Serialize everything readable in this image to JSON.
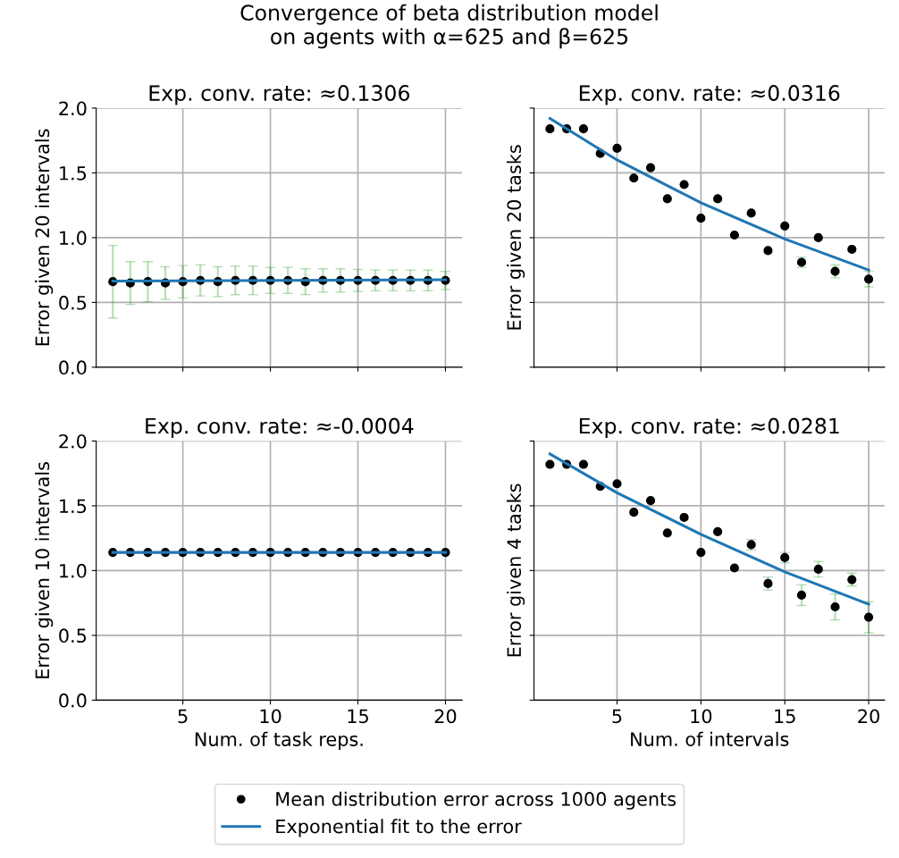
{
  "chart_data": [
    {
      "type": "line",
      "title": "Exp. conv. rate: ≈0.1306",
      "ylabel": "Error given 20 intervals",
      "annotations": [
        "Convergence of beta distribution model\non agents with α=625 and β=625"
      ],
      "x": [
        1,
        2,
        3,
        4,
        5,
        6,
        7,
        8,
        9,
        10,
        11,
        12,
        13,
        14,
        15,
        16,
        17,
        18,
        19,
        20
      ],
      "xlim": [
        0.05,
        20.95
      ],
      "xticks": [
        5,
        10,
        15,
        20
      ],
      "ylim": [
        0,
        2
      ],
      "yticks": [
        {
          "value": 0,
          "label": "0.0"
        },
        {
          "value": 0.5,
          "label": "0.5"
        },
        {
          "value": 1,
          "label": "1.0"
        },
        {
          "value": 1.5,
          "label": "1.5"
        },
        {
          "value": 2,
          "label": "2.0"
        }
      ],
      "tick_labels": "y",
      "grid": true,
      "legend": "bottom",
      "series": [
        {
          "name": "Mean distribution error across 1000 agents",
          "type": "scatter",
          "marker": "circle",
          "color": "#000000",
          "values": [
            0.66,
            0.65,
            0.66,
            0.65,
            0.66,
            0.67,
            0.66,
            0.67,
            0.67,
            0.67,
            0.67,
            0.66,
            0.67,
            0.67,
            0.67,
            0.67,
            0.67,
            0.67,
            0.67,
            0.67
          ],
          "errors": [
            0.28,
            0.165,
            0.155,
            0.125,
            0.125,
            0.12,
            0.115,
            0.11,
            0.11,
            0.1,
            0.1,
            0.1,
            0.09,
            0.09,
            0.085,
            0.08,
            0.08,
            0.08,
            0.08,
            0.07
          ]
        },
        {
          "name": "Exponential fit to the error",
          "color": "#1f77b4",
          "x": [
            1,
            20
          ],
          "values": [
            0.665,
            0.675
          ]
        }
      ]
    },
    {
      "type": "line",
      "title": "Exp. conv. rate: ≈0.0316",
      "ylabel": "Error given 20 tasks",
      "x": [
        1,
        2,
        3,
        4,
        5,
        6,
        7,
        8,
        9,
        10,
        11,
        12,
        13,
        14,
        15,
        16,
        17,
        18,
        19,
        20
      ],
      "xlim": [
        0.05,
        20.95
      ],
      "xticks": [
        5,
        10,
        15,
        20
      ],
      "ylim": [
        0,
        2
      ],
      "yticks": [
        0,
        0.5,
        1,
        1.5,
        2
      ],
      "tick_labels": false,
      "grid": true,
      "series": [
        {
          "name": "Mean distribution error across 1000 agents",
          "type": "scatter",
          "marker": "circle",
          "color": "#000000",
          "values": [
            1.84,
            1.84,
            1.84,
            1.65,
            1.69,
            1.46,
            1.54,
            1.3,
            1.41,
            1.15,
            1.3,
            1.02,
            1.19,
            0.9,
            1.09,
            0.81,
            1.0,
            0.74,
            0.91,
            0.68
          ],
          "errors": [
            null,
            null,
            null,
            null,
            null,
            null,
            null,
            null,
            null,
            null,
            null,
            null,
            null,
            null,
            null,
            0.04,
            null,
            0.05,
            null,
            0.06
          ]
        },
        {
          "name": "Exponential fit to the error",
          "color": "#1f77b4",
          "x": [
            1,
            5,
            10,
            15,
            20
          ],
          "values": [
            1.92,
            1.6,
            1.27,
            0.99,
            0.75
          ]
        }
      ]
    },
    {
      "type": "line",
      "title": "Exp. conv. rate: ≈-0.0004",
      "ylabel": "Error given 10 intervals",
      "xlabel": "Num. of task reps.",
      "x": [
        1,
        2,
        3,
        4,
        5,
        6,
        7,
        8,
        9,
        10,
        11,
        12,
        13,
        14,
        15,
        16,
        17,
        18,
        19,
        20
      ],
      "xlim": [
        0.05,
        20.95
      ],
      "xticks": [
        5,
        10,
        15,
        20
      ],
      "ylim": [
        0,
        2
      ],
      "yticks": [
        {
          "value": 0,
          "label": "0.0"
        },
        {
          "value": 0.5,
          "label": "0.5"
        },
        {
          "value": 1,
          "label": "1.0"
        },
        {
          "value": 1.5,
          "label": "1.5"
        },
        {
          "value": 2,
          "label": "2.0"
        }
      ],
      "grid": true,
      "series": [
        {
          "name": "Mean distribution error across 1000 agents",
          "type": "scatter",
          "marker": "circle",
          "color": "#000000",
          "values": [
            1.14,
            1.14,
            1.14,
            1.14,
            1.14,
            1.14,
            1.14,
            1.14,
            1.14,
            1.14,
            1.14,
            1.14,
            1.14,
            1.14,
            1.14,
            1.14,
            1.14,
            1.14,
            1.14,
            1.14
          ]
        },
        {
          "name": "Exponential fit to the error",
          "color": "#1f77b4",
          "x": [
            1,
            20
          ],
          "values": [
            1.14,
            1.14
          ]
        }
      ]
    },
    {
      "type": "line",
      "title": "Exp. conv. rate: ≈0.0281",
      "ylabel": "Error given 4 tasks",
      "xlabel": "Num. of intervals",
      "x": [
        1,
        2,
        3,
        4,
        5,
        6,
        7,
        8,
        9,
        10,
        11,
        12,
        13,
        14,
        15,
        16,
        17,
        18,
        19,
        20
      ],
      "xlim": [
        0.05,
        20.95
      ],
      "xticks": [
        5,
        10,
        15,
        20
      ],
      "ylim": [
        0,
        2
      ],
      "yticks": [
        0,
        0.5,
        1,
        1.5,
        2
      ],
      "tick_labels": "x",
      "grid": true,
      "series": [
        {
          "name": "Mean distribution error across 1000 agents",
          "type": "scatter",
          "marker": "circle",
          "color": "#000000",
          "values": [
            1.82,
            1.82,
            1.82,
            1.65,
            1.67,
            1.45,
            1.54,
            1.29,
            1.41,
            1.14,
            1.3,
            1.02,
            1.2,
            0.9,
            1.1,
            0.81,
            1.01,
            0.72,
            0.93,
            0.64
          ],
          "errors": [
            null,
            null,
            null,
            null,
            null,
            null,
            null,
            null,
            null,
            null,
            null,
            null,
            0.04,
            0.05,
            0.04,
            0.08,
            0.06,
            0.1,
            0.05,
            0.12
          ]
        },
        {
          "name": "Exponential fit to the error",
          "color": "#1f77b4",
          "x": [
            1,
            5,
            10,
            15,
            20
          ],
          "values": [
            1.9,
            1.6,
            1.28,
            0.99,
            0.74
          ]
        }
      ]
    }
  ]
}
